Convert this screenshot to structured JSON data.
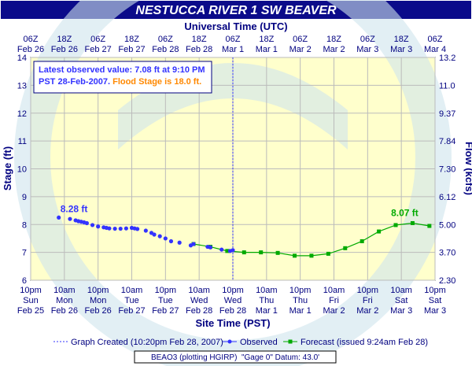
{
  "chart_data": {
    "type": "line",
    "title": "NESTUCCA RIVER 1 SW BEAVER",
    "top_axis_title": "Universal Time (UTC)",
    "xlabel": "Site Time (PST)",
    "ylabel": "Stage (ft)",
    "y2label": "Flow (kcfs)",
    "ylim": [
      6,
      14
    ],
    "y_ticks": [
      "6",
      "7",
      "8",
      "9",
      "10",
      "11",
      "12",
      "13",
      "14"
    ],
    "flow_ticks": [
      "2.30",
      "3.70",
      "5.00",
      "6.12",
      "7.30",
      "7.84",
      "9.37",
      "11.0",
      "13.2"
    ],
    "x_range_hours_note": "Feb 25 10pm PST to Mar 3 10pm PST",
    "top_ticks": [
      [
        "06Z",
        "Feb 26"
      ],
      [
        "18Z",
        "Feb 26"
      ],
      [
        "06Z",
        "Feb 27"
      ],
      [
        "18Z",
        "Feb 27"
      ],
      [
        "06Z",
        "Feb 28"
      ],
      [
        "18Z",
        "Feb 28"
      ],
      [
        "06Z",
        "Mar 1"
      ],
      [
        "18Z",
        "Mar 1"
      ],
      [
        "06Z",
        "Mar 2"
      ],
      [
        "18Z",
        "Mar 2"
      ],
      [
        "06Z",
        "Mar 3"
      ],
      [
        "18Z",
        "Mar 3"
      ],
      [
        "06Z",
        "Mar 4"
      ]
    ],
    "bottom_ticks": [
      [
        "10pm",
        "Sun",
        "Feb 25"
      ],
      [
        "10am",
        "Mon",
        "Feb 26"
      ],
      [
        "10pm",
        "Mon",
        "Feb 26"
      ],
      [
        "10am",
        "Tue",
        "Feb 27"
      ],
      [
        "10pm",
        "Tue",
        "Feb 27"
      ],
      [
        "10am",
        "Wed",
        "Feb 28"
      ],
      [
        "10pm",
        "Wed",
        "Feb 28"
      ],
      [
        "10am",
        "Thu",
        "Mar 1"
      ],
      [
        "10pm",
        "Thu",
        "Mar 1"
      ],
      [
        "10am",
        "Fri",
        "Mar 2"
      ],
      [
        "10pm",
        "Fri",
        "Mar 2"
      ],
      [
        "10am",
        "Sat",
        "Mar 3"
      ],
      [
        "10pm",
        "Sat",
        "Mar 3"
      ]
    ],
    "series": [
      {
        "name": "Observed",
        "color": "#3333ff",
        "points": [
          [
            10,
            8.25
          ],
          [
            14,
            8.2
          ],
          [
            16,
            8.15
          ],
          [
            17,
            8.12
          ],
          [
            18,
            8.1
          ],
          [
            19,
            8.08
          ],
          [
            20,
            8.05
          ],
          [
            22,
            7.98
          ],
          [
            24,
            7.93
          ],
          [
            26,
            7.9
          ],
          [
            27,
            7.88
          ],
          [
            28,
            7.86
          ],
          [
            30,
            7.85
          ],
          [
            32,
            7.85
          ],
          [
            34,
            7.86
          ],
          [
            36,
            7.88
          ],
          [
            37,
            7.86
          ],
          [
            38,
            7.84
          ],
          [
            41,
            7.78
          ],
          [
            43,
            7.7
          ],
          [
            44,
            7.64
          ],
          [
            46,
            7.58
          ],
          [
            48,
            7.5
          ],
          [
            50,
            7.4
          ],
          [
            53,
            7.35
          ],
          [
            57,
            7.25
          ],
          [
            58,
            7.3
          ],
          [
            63,
            7.2
          ],
          [
            64,
            7.18
          ],
          [
            68,
            7.1
          ],
          [
            71,
            7.05
          ],
          [
            72,
            7.08
          ]
        ]
      },
      {
        "name": "Forecast (issued 9:24am Feb 28)",
        "color": "#00aa00",
        "points": [
          [
            58,
            7.3
          ],
          [
            64,
            7.2
          ],
          [
            70,
            7.05
          ],
          [
            76,
            7.0
          ],
          [
            82,
            7.0
          ],
          [
            88,
            6.98
          ],
          [
            94,
            6.88
          ],
          [
            100,
            6.88
          ],
          [
            106,
            6.95
          ],
          [
            112,
            7.15
          ],
          [
            118,
            7.4
          ],
          [
            124,
            7.75
          ],
          [
            130,
            7.98
          ],
          [
            136,
            8.05
          ],
          [
            142,
            7.95
          ]
        ]
      }
    ],
    "annotations": {
      "observed_peak_label": "8.28 ft",
      "forecast_peak_label": "8.07 ft",
      "info_line1": "Latest observed value: 7.08 ft at 9:10 PM",
      "info_line2_a": "PST 28-Feb-2007.",
      "info_line2_b": "Flood Stage is 18.0 ft."
    },
    "graph_created_marker_hour": 72,
    "legend": {
      "graph_created": "Graph Created (10:20pm Feb 28, 2007)",
      "observed": "Observed",
      "forecast": "Forecast (issued 9:24am Feb 28)"
    },
    "footer": "BEAO3 (plotting HGIRP)  \"Gage 0\" Datum: 43.0'",
    "colors": {
      "title_bg": "#0b0b8a",
      "title_text": "#ffffff",
      "plot_bg": "#ffffcc",
      "observed": "#3333ff",
      "forecast": "#00aa00",
      "flood_stage": "#ff8800",
      "grid": "#bbbbbb",
      "axis_text": "#000080"
    }
  }
}
